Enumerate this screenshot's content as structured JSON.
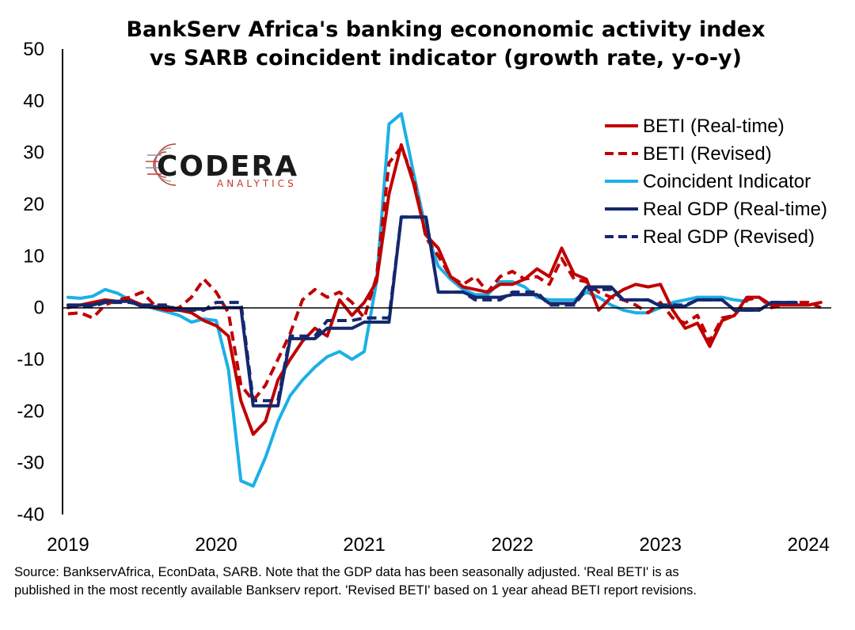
{
  "title_line1": "BankServ Africa's banking econonomic activity index",
  "title_line2": "vs SARB coincident indicator (growth rate, y-o-y)",
  "footnote_line1": "Source: BankservAfrica, EconData, SARB. Note that the GDP data has been seasonally adjusted. 'Real BETI' is as",
  "footnote_line2": "published in the most recently available Bankserv report. 'Revised BETI' based on 1 year ahead BETI report revisions.",
  "logo": {
    "main": "CODERA",
    "sub": "ANALYTICS"
  },
  "chart_data": {
    "type": "line",
    "title": "BankServ Africa's banking econonomic activity index vs SARB coincident indicator (growth rate, y-o-y)",
    "xlim": [
      2019.0,
      2024.1
    ],
    "ylim": [
      -40,
      50
    ],
    "x_ticks": [
      "2019",
      "2020",
      "2021",
      "2022",
      "2023",
      "2024"
    ],
    "y_ticks": [
      "50",
      "40",
      "30",
      "20",
      "10",
      "0",
      "-10",
      "-20",
      "-30",
      "-40"
    ],
    "legend_position": "top-right",
    "grid": false,
    "series": [
      {
        "name": "Coincident Indicator",
        "color": "#1ab0e8",
        "dash": false,
        "x": [
          2019.0,
          2019.083,
          2019.167,
          2019.25,
          2019.333,
          2019.417,
          2019.5,
          2019.583,
          2019.667,
          2019.75,
          2019.833,
          2019.917,
          2020.0,
          2020.083,
          2020.167,
          2020.25,
          2020.333,
          2020.417,
          2020.5,
          2020.583,
          2020.667,
          2020.75,
          2020.833,
          2020.917,
          2021.0,
          2021.083,
          2021.167,
          2021.25,
          2021.333,
          2021.417,
          2021.5,
          2021.583,
          2021.667,
          2021.75,
          2021.833,
          2021.917,
          2022.0,
          2022.083,
          2022.167,
          2022.25,
          2022.333,
          2022.417,
          2022.5,
          2022.583,
          2022.667,
          2022.75,
          2022.833,
          2022.917,
          2023.0,
          2023.083,
          2023.167,
          2023.25,
          2023.333,
          2023.417,
          2023.5,
          2023.583
        ],
        "y": [
          2.0,
          1.8,
          2.2,
          3.5,
          2.8,
          1.5,
          0.5,
          -0.2,
          -0.8,
          -1.5,
          -2.8,
          -2.2,
          -2.5,
          -12,
          -33.5,
          -34.5,
          -29,
          -22,
          -17,
          -14,
          -11.5,
          -9.5,
          -8.5,
          -10,
          -8.5,
          5,
          35.5,
          37.5,
          26,
          15,
          8,
          5.5,
          3.5,
          2.5,
          2.5,
          5,
          5,
          4,
          2,
          1.5,
          1.5,
          1.5,
          3,
          2,
          0.5,
          -0.5,
          -1,
          -1,
          0,
          1,
          1.5,
          2,
          2,
          2,
          1.5,
          1.2
        ]
      },
      {
        "name": "BETI (Real-time)",
        "color": "#c00000",
        "dash": false,
        "x": [
          2019.0,
          2019.083,
          2019.167,
          2019.25,
          2019.333,
          2019.417,
          2019.5,
          2019.583,
          2019.667,
          2019.75,
          2019.833,
          2019.917,
          2020.0,
          2020.083,
          2020.167,
          2020.25,
          2020.333,
          2020.417,
          2020.5,
          2020.583,
          2020.667,
          2020.75,
          2020.833,
          2020.917,
          2021.0,
          2021.083,
          2021.167,
          2021.25,
          2021.333,
          2021.417,
          2021.5,
          2021.583,
          2021.667,
          2021.75,
          2021.833,
          2021.917,
          2022.0,
          2022.083,
          2022.167,
          2022.25,
          2022.333,
          2022.417,
          2022.5,
          2022.583,
          2022.667,
          2022.75,
          2022.833,
          2022.917,
          2023.0,
          2023.083,
          2023.167,
          2023.25,
          2023.333,
          2023.417,
          2023.5,
          2023.583,
          2023.667,
          2023.75,
          2023.833,
          2023.917,
          2024.0,
          2024.083
        ],
        "y": [
          0,
          0.5,
          1,
          1.5,
          1.2,
          1.5,
          0.5,
          0,
          -0.5,
          -0.5,
          -1,
          -2.5,
          -3.5,
          -5.5,
          -18,
          -24.5,
          -22,
          -14,
          -10,
          -6.5,
          -4,
          -5.5,
          1.5,
          -1.5,
          1,
          5,
          22,
          31.5,
          24,
          14,
          11.5,
          6,
          4,
          3.5,
          3,
          4.5,
          4.5,
          5.5,
          7.5,
          6,
          11.5,
          6.5,
          5.5,
          -0.5,
          2,
          3.5,
          4.5,
          4,
          4.5,
          -0.5,
          -4,
          -3,
          -7.5,
          -2.5,
          -1.5,
          2,
          2,
          0.5,
          0.5,
          0.5,
          0.5,
          1
        ]
      },
      {
        "name": "BETI (Revised)",
        "color": "#c00000",
        "dash": true,
        "x": [
          2019.0,
          2019.083,
          2019.167,
          2019.25,
          2019.333,
          2019.417,
          2019.5,
          2019.583,
          2019.667,
          2019.75,
          2019.833,
          2019.917,
          2020.0,
          2020.083,
          2020.167,
          2020.25,
          2020.333,
          2020.417,
          2020.5,
          2020.583,
          2020.667,
          2020.75,
          2020.833,
          2020.917,
          2021.0,
          2021.083,
          2021.167,
          2021.25,
          2021.333,
          2021.417,
          2021.5,
          2021.583,
          2021.667,
          2021.75,
          2021.833,
          2021.917,
          2022.0,
          2022.083,
          2022.167,
          2022.25,
          2022.333,
          2022.417,
          2022.5,
          2022.583,
          2022.667,
          2022.75,
          2022.833,
          2022.917,
          2023.0,
          2023.083,
          2023.167,
          2023.25,
          2023.333,
          2023.417,
          2023.5,
          2023.583,
          2023.667,
          2023.75,
          2023.833,
          2023.917,
          2024.0,
          2024.083
        ],
        "y": [
          -1.2,
          -1.0,
          -2.0,
          0.5,
          1.5,
          2.0,
          3.0,
          0.5,
          -0.5,
          0.0,
          2.0,
          5.5,
          3.0,
          -1.0,
          -15.0,
          -18.0,
          -15.0,
          -10.0,
          -5.0,
          1.5,
          3.5,
          2.0,
          3.0,
          1.0,
          -2.0,
          6.0,
          28.0,
          31.0,
          25.0,
          13.5,
          10.0,
          6.0,
          4.5,
          6.0,
          3.0,
          6.0,
          7.0,
          5.5,
          6.0,
          4.5,
          9.5,
          5.5,
          5.0,
          3.0,
          2.0,
          1.5,
          0.5,
          -1.0,
          1.0,
          -2.0,
          -3.0,
          -1.5,
          -6.5,
          -2.0,
          -1.5,
          1.5,
          2.0,
          0.0,
          0.5,
          1.0,
          1.0,
          0.0
        ]
      },
      {
        "name": "Real GDP (Real-time)",
        "color": "#14286e",
        "dash": false,
        "x": [
          2019.0,
          2019.167,
          2019.25,
          2019.417,
          2019.5,
          2019.667,
          2019.75,
          2019.917,
          2020.0,
          2020.167,
          2020.25,
          2020.417,
          2020.5,
          2020.667,
          2020.75,
          2020.917,
          2021.0,
          2021.167,
          2021.25,
          2021.417,
          2021.5,
          2021.667,
          2021.75,
          2021.917,
          2022.0,
          2022.167,
          2022.25,
          2022.417,
          2022.5,
          2022.667,
          2022.75,
          2022.917,
          2023.0,
          2023.167,
          2023.25,
          2023.417,
          2023.5,
          2023.667,
          2023.75,
          2023.917
        ],
        "y": [
          0.5,
          0.5,
          1.2,
          1.2,
          0.2,
          0.2,
          -0.3,
          -0.3,
          0,
          0,
          -19,
          -19,
          -6,
          -6,
          -4,
          -4,
          -2.8,
          -2.8,
          17.5,
          17.5,
          3,
          3,
          2,
          2,
          2.5,
          2.5,
          0.8,
          0.8,
          4,
          4,
          1.5,
          1.5,
          0.3,
          0.3,
          1.5,
          1.5,
          -0.5,
          -0.5,
          1,
          1
        ]
      },
      {
        "name": "Real GDP (Revised)",
        "color": "#14286e",
        "dash": true,
        "x": [
          2019.0,
          2019.167,
          2019.25,
          2019.417,
          2019.5,
          2019.667,
          2019.75,
          2019.917,
          2020.0,
          2020.167,
          2020.25,
          2020.417,
          2020.5,
          2020.667,
          2020.75,
          2020.917,
          2021.0,
          2021.167,
          2021.25,
          2021.417,
          2021.5,
          2021.667,
          2021.75,
          2021.917,
          2022.0,
          2022.167,
          2022.25,
          2022.417,
          2022.5,
          2022.667,
          2022.75,
          2022.917,
          2023.0,
          2023.167,
          2023.25,
          2023.417,
          2023.5,
          2023.667,
          2023.75,
          2023.917
        ],
        "y": [
          0.2,
          0.2,
          1.0,
          1.0,
          0.5,
          0.5,
          -0.5,
          -0.5,
          1.0,
          1.0,
          -18.0,
          -18.0,
          -5.5,
          -5.5,
          -2.5,
          -2.5,
          -2.0,
          -2.0,
          17.5,
          17.5,
          3.0,
          3.0,
          1.5,
          1.5,
          3.0,
          3.0,
          0.5,
          0.5,
          3.5,
          3.5,
          1.5,
          1.5,
          0.5,
          0.5,
          1.5,
          1.5,
          -0.5,
          -0.5,
          1.0,
          1.0
        ]
      }
    ],
    "legend": [
      {
        "name": "BETI (Real-time)",
        "color": "#c00000",
        "dash": false
      },
      {
        "name": "BETI (Revised)",
        "color": "#c00000",
        "dash": true
      },
      {
        "name": "Coincident Indicator",
        "color": "#1ab0e8",
        "dash": false
      },
      {
        "name": "Real GDP (Real-time)",
        "color": "#14286e",
        "dash": false
      },
      {
        "name": "Real GDP (Revised)",
        "color": "#14286e",
        "dash": true
      }
    ]
  }
}
